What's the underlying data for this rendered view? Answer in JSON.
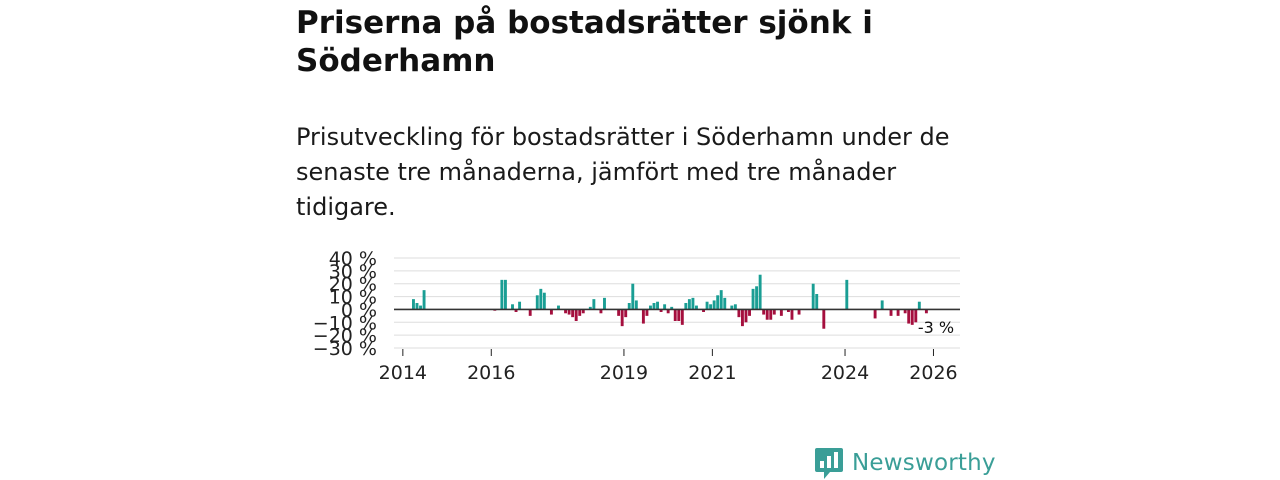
{
  "title": "Priserna på bostadsrätter sjönk i Söderhamn",
  "subtitle": "Prisutveckling för bostadsrätter i Söderhamn under de senaste tre månaderna, jämfört med tre månader tidigare.",
  "brand": {
    "name": "Newsworthy",
    "icon": "newsworthy-logo-icon"
  },
  "colors": {
    "positive": "#1a9e94",
    "negative": "#a50f3e",
    "grid": "#dddddd",
    "zero_line": "#333333",
    "brand": "#3a9e97"
  },
  "chart_data": {
    "type": "bar",
    "title": "Priserna på bostadsrätter sjönk i Söderhamn",
    "ylabel": "",
    "xlabel": "",
    "ylim": [
      -30,
      40
    ],
    "yticks": [
      40,
      30,
      20,
      10,
      0,
      -10,
      -20,
      -30
    ],
    "ytick_labels": [
      "40 %",
      "30 %",
      "20 %",
      "10 %",
      "0 %",
      "−10 %",
      "−20 %",
      "−30 %"
    ],
    "xlim": [
      2013.8,
      2026.6
    ],
    "xticks": [
      2014,
      2016,
      2019,
      2021,
      2024,
      2026
    ],
    "xtick_labels": [
      "2014",
      "2016",
      "2019",
      "2021",
      "2024",
      "2026"
    ],
    "end_label": "-3 %",
    "series": [
      {
        "name": "Prisutveckling",
        "points": [
          [
            2014.24,
            8
          ],
          [
            2014.32,
            5
          ],
          [
            2014.4,
            3
          ],
          [
            2014.48,
            15
          ],
          [
            2016.08,
            -1
          ],
          [
            2016.24,
            23
          ],
          [
            2016.32,
            23
          ],
          [
            2016.48,
            4
          ],
          [
            2016.56,
            -2
          ],
          [
            2016.64,
            6
          ],
          [
            2016.88,
            -5
          ],
          [
            2017.04,
            11
          ],
          [
            2017.12,
            16
          ],
          [
            2017.2,
            13
          ],
          [
            2017.36,
            -4
          ],
          [
            2017.52,
            3
          ],
          [
            2017.68,
            -3
          ],
          [
            2017.76,
            -4
          ],
          [
            2017.84,
            -6
          ],
          [
            2017.92,
            -9
          ],
          [
            2018.0,
            -5
          ],
          [
            2018.08,
            -3
          ],
          [
            2018.24,
            2
          ],
          [
            2018.32,
            8
          ],
          [
            2018.48,
            -3
          ],
          [
            2018.56,
            9
          ],
          [
            2018.88,
            -5
          ],
          [
            2018.96,
            -13
          ],
          [
            2019.04,
            -6
          ],
          [
            2019.12,
            5
          ],
          [
            2019.2,
            20
          ],
          [
            2019.28,
            7
          ],
          [
            2019.44,
            -11
          ],
          [
            2019.52,
            -5
          ],
          [
            2019.6,
            3
          ],
          [
            2019.68,
            5
          ],
          [
            2019.76,
            6
          ],
          [
            2019.84,
            -2
          ],
          [
            2019.92,
            4
          ],
          [
            2020.0,
            -3
          ],
          [
            2020.08,
            2
          ],
          [
            2020.16,
            -9
          ],
          [
            2020.24,
            -9
          ],
          [
            2020.32,
            -12
          ],
          [
            2020.4,
            5
          ],
          [
            2020.48,
            8
          ],
          [
            2020.56,
            9
          ],
          [
            2020.64,
            3
          ],
          [
            2020.8,
            -2
          ],
          [
            2020.88,
            6
          ],
          [
            2020.96,
            4
          ],
          [
            2021.04,
            7
          ],
          [
            2021.12,
            11
          ],
          [
            2021.2,
            15
          ],
          [
            2021.28,
            9
          ],
          [
            2021.44,
            3
          ],
          [
            2021.52,
            4
          ],
          [
            2021.6,
            -6
          ],
          [
            2021.68,
            -13
          ],
          [
            2021.76,
            -10
          ],
          [
            2021.84,
            -5
          ],
          [
            2021.92,
            16
          ],
          [
            2022.0,
            18
          ],
          [
            2022.08,
            27
          ],
          [
            2022.16,
            -4
          ],
          [
            2022.24,
            -8
          ],
          [
            2022.32,
            -8
          ],
          [
            2022.4,
            -4
          ],
          [
            2022.56,
            -5
          ],
          [
            2022.72,
            -2
          ],
          [
            2022.8,
            -8
          ],
          [
            2022.96,
            -4
          ],
          [
            2023.28,
            20
          ],
          [
            2023.36,
            12
          ],
          [
            2023.52,
            -15
          ],
          [
            2024.04,
            23
          ],
          [
            2024.68,
            -7
          ],
          [
            2024.84,
            7
          ],
          [
            2025.04,
            -5
          ],
          [
            2025.2,
            -5
          ],
          [
            2025.36,
            -3
          ],
          [
            2025.44,
            -11
          ],
          [
            2025.52,
            -12
          ],
          [
            2025.6,
            -10
          ],
          [
            2025.68,
            6
          ],
          [
            2025.84,
            -3
          ]
        ]
      }
    ]
  }
}
